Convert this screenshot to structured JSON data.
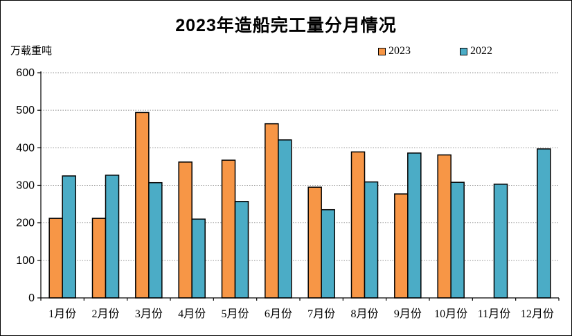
{
  "chart_data": {
    "type": "bar",
    "title": "2023年造船完工量分月情况",
    "ylabel": "万载重吨",
    "xlabel": "",
    "legend_position": "top",
    "grid": "horizontal dotted",
    "ylim": [
      0,
      600
    ],
    "ytick_interval": 100,
    "yticks": [
      0,
      100,
      200,
      300,
      400,
      500,
      600
    ],
    "categories": [
      "1月份",
      "2月份",
      "3月份",
      "4月份",
      "5月份",
      "6月份",
      "7月份",
      "8月份",
      "9月份",
      "10月份",
      "11月份",
      "12月份"
    ],
    "series": [
      {
        "name": "2023",
        "color": "#F79646",
        "values": [
          212,
          212,
          494,
          362,
          367,
          464,
          295,
          389,
          277,
          381,
          null,
          null
        ]
      },
      {
        "name": "2022",
        "color": "#4BACC6",
        "values": [
          325,
          327,
          307,
          210,
          257,
          421,
          235,
          309,
          386,
          308,
          303,
          397
        ]
      }
    ]
  }
}
